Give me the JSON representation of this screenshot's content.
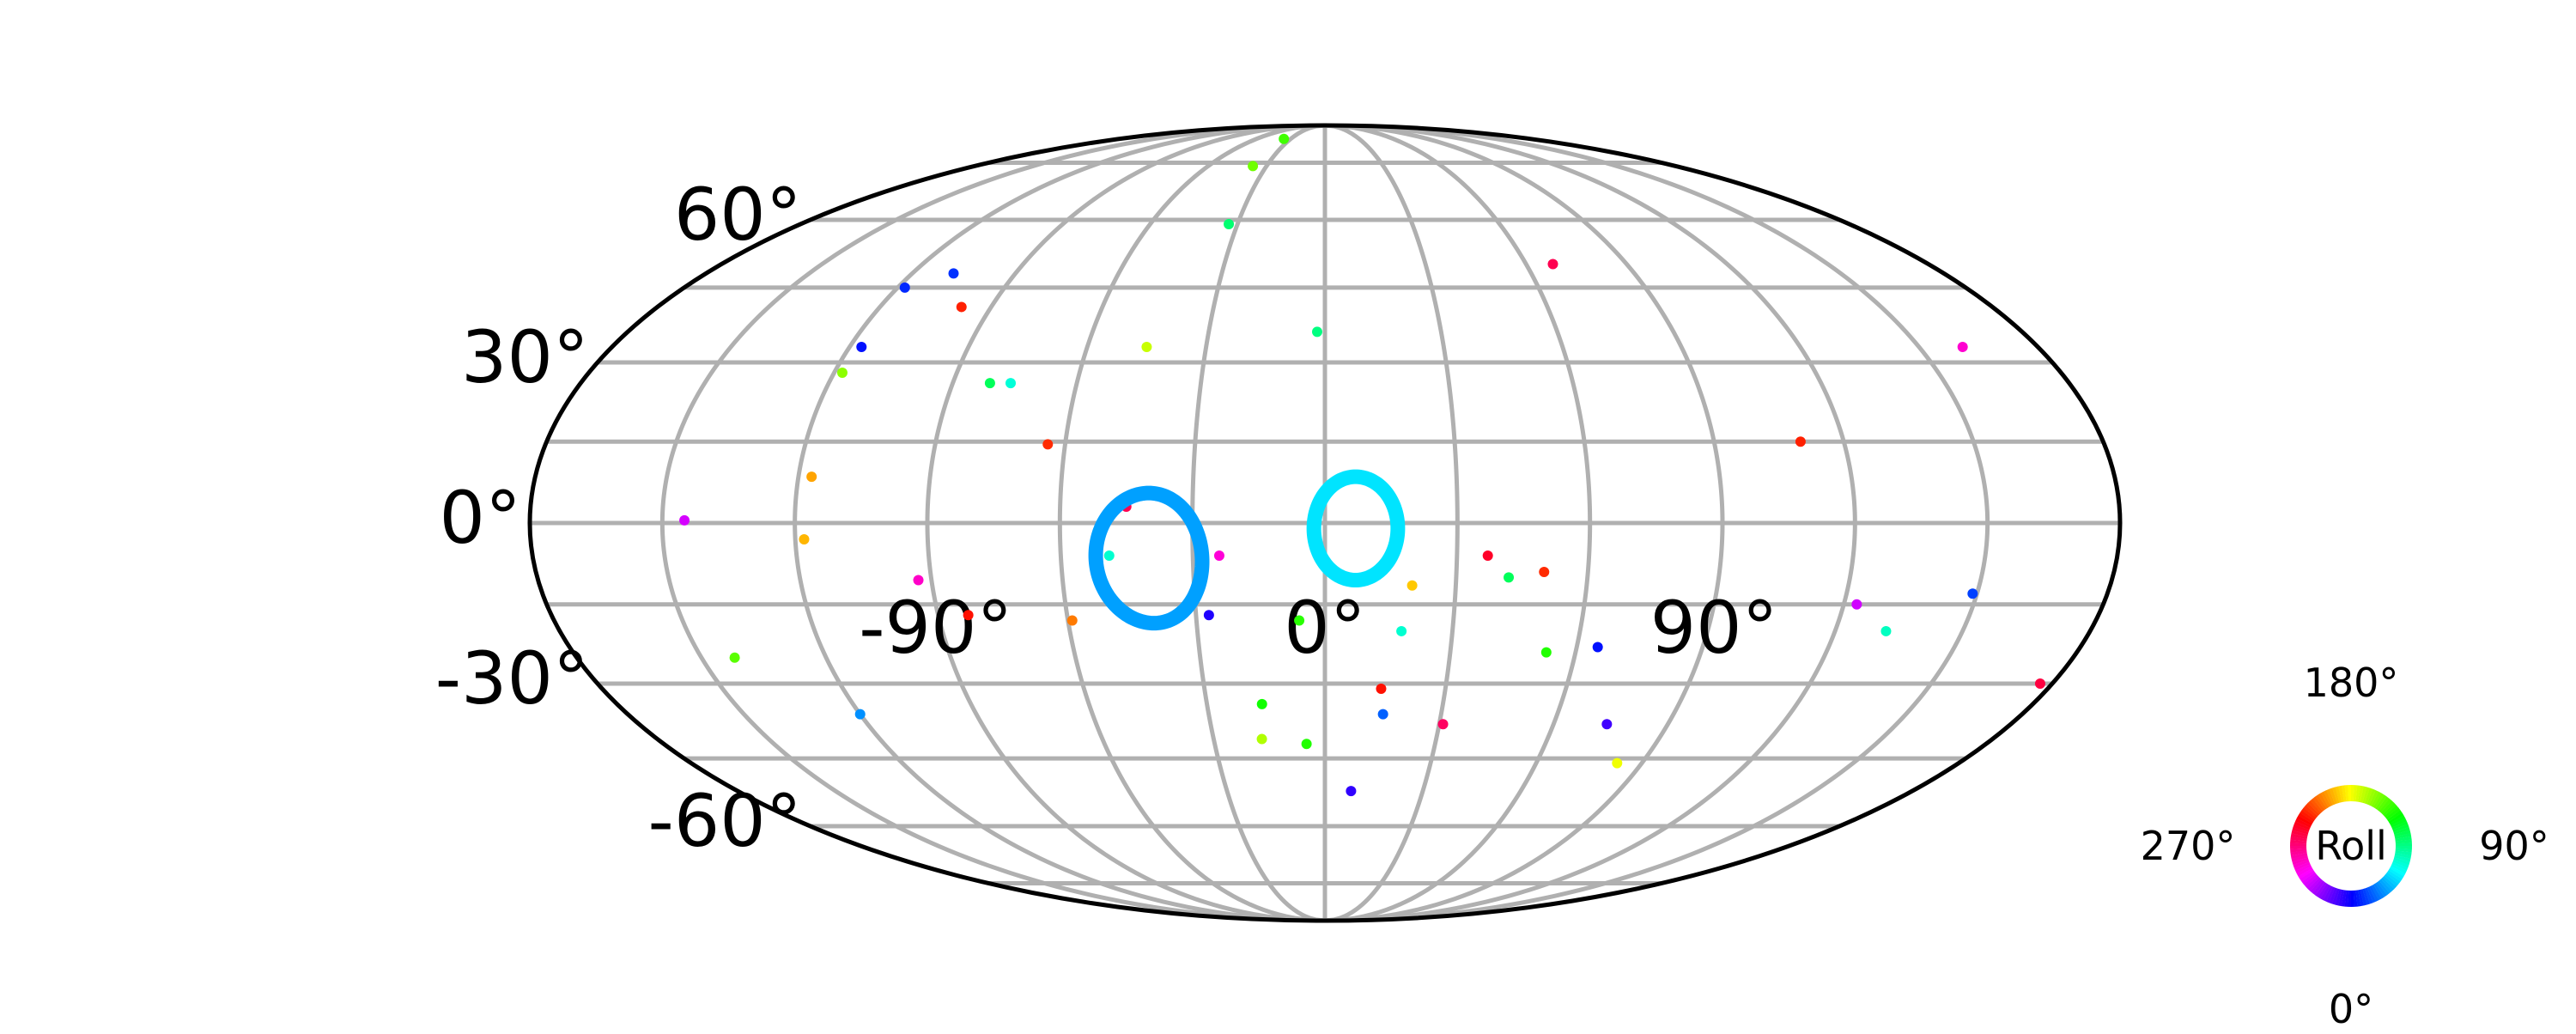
{
  "chart_data": {
    "type": "scatter",
    "projection": "mollweide",
    "grid": true,
    "xlabel": "",
    "ylabel": "",
    "xlim": [
      -180,
      180
    ],
    "ylim": [
      -90,
      90
    ],
    "lon_ticks": [
      -150,
      -120,
      -90,
      -60,
      -30,
      0,
      30,
      60,
      90,
      120,
      150
    ],
    "lat_ticks": [
      -75,
      -60,
      -45,
      -30,
      -15,
      0,
      15,
      30,
      45,
      60,
      75
    ],
    "lon_tick_labels": [
      {
        "lon": -90,
        "text": "-90°"
      },
      {
        "lon": 0,
        "text": "0°"
      },
      {
        "lon": 90,
        "text": "90°"
      }
    ],
    "lat_tick_labels": [
      {
        "lat": 60,
        "text": "60°"
      },
      {
        "lat": 30,
        "text": "30°"
      },
      {
        "lat": 0,
        "text": "0°"
      },
      {
        "lat": -30,
        "text": "-30°"
      },
      {
        "lat": -60,
        "text": "-60°"
      }
    ],
    "points": [
      {
        "lon": -145,
        "lat": 0.5,
        "color": "#d500ff"
      },
      {
        "lon": -117,
        "lat": 8.5,
        "color": "#ffa400"
      },
      {
        "lon": -118,
        "lat": -3,
        "color": "#ffb600"
      },
      {
        "lon": -118,
        "lat": 28,
        "color": "#8cff00"
      },
      {
        "lon": -117,
        "lat": 33,
        "color": "#0010ff"
      },
      {
        "lon": -118,
        "lat": 45,
        "color": "#0028ff"
      },
      {
        "lon": -108,
        "lat": 48,
        "color": "#0030ff"
      },
      {
        "lon": -98,
        "lat": 41,
        "color": "#ff2000"
      },
      {
        "lon": -81,
        "lat": 26,
        "color": "#00ff5a"
      },
      {
        "lon": -76,
        "lat": 26,
        "color": "#00ffd8"
      },
      {
        "lon": -64,
        "lat": 14.5,
        "color": "#ff2a00"
      },
      {
        "lon": -45,
        "lat": 33,
        "color": "#c8ff00"
      },
      {
        "lon": -45,
        "lat": 3,
        "color": "#ff0050"
      },
      {
        "lon": -49,
        "lat": -6,
        "color": "#00ffd0"
      },
      {
        "lon": -24,
        "lat": -6,
        "color": "#ff00d8"
      },
      {
        "lon": -27,
        "lat": -17,
        "color": "#2000ff"
      },
      {
        "lon": -59,
        "lat": -18,
        "color": "#ff7a00"
      },
      {
        "lon": -83,
        "lat": -17,
        "color": "#ff1000"
      },
      {
        "lon": -93,
        "lat": -10.5,
        "color": "#ff00c8"
      },
      {
        "lon": -142,
        "lat": -25,
        "color": "#5aff00"
      },
      {
        "lon": -120,
        "lat": -36,
        "color": "#0090ff"
      },
      {
        "lon": -6,
        "lat": -18,
        "color": "#28ff00"
      },
      {
        "lon": 18,
        "lat": -20,
        "color": "#00ffd0"
      },
      {
        "lon": 20,
        "lat": -11.5,
        "color": "#ffc800"
      },
      {
        "lon": 37,
        "lat": -6,
        "color": "#ff0028"
      },
      {
        "lon": 42,
        "lat": -10,
        "color": "#00ff5a"
      },
      {
        "lon": 50,
        "lat": -9,
        "color": "#ff2a00"
      },
      {
        "lon": 53,
        "lat": -24,
        "color": "#20ff00"
      },
      {
        "lon": 65,
        "lat": -23,
        "color": "#0010ff"
      },
      {
        "lon": 14,
        "lat": -31,
        "color": "#ff1000"
      },
      {
        "lon": 15,
        "lat": -36,
        "color": "#0060ff"
      },
      {
        "lon": 31,
        "lat": -38,
        "color": "#ff0060"
      },
      {
        "lon": -16,
        "lat": -34,
        "color": "#10ff00"
      },
      {
        "lon": -17,
        "lat": -41,
        "color": "#b0ff00"
      },
      {
        "lon": -5,
        "lat": -42,
        "color": "#20ff00"
      },
      {
        "lon": 8,
        "lat": -52,
        "color": "#3000ff"
      },
      {
        "lon": 83,
        "lat": -46,
        "color": "#f0ff00"
      },
      {
        "lon": 74,
        "lat": -38,
        "color": "#4000ff"
      },
      {
        "lon": 123,
        "lat": -15,
        "color": "#d000ff"
      },
      {
        "lon": 132,
        "lat": -20,
        "color": "#00ffc0"
      },
      {
        "lon": 149,
        "lat": -13,
        "color": "#0040ff"
      },
      {
        "lon": 177,
        "lat": -30,
        "color": "#ff0040"
      },
      {
        "lon": 110,
        "lat": 15,
        "color": "#ff2000"
      },
      {
        "lon": 161,
        "lat": 33,
        "color": "#ff00d0"
      },
      {
        "lon": 68,
        "lat": 50,
        "color": "#ff0050"
      },
      {
        "lon": -2,
        "lat": 36,
        "color": "#00ff80"
      },
      {
        "lon": -33,
        "lat": 59,
        "color": "#00ff70"
      },
      {
        "lon": -37,
        "lat": 74,
        "color": "#70ff00"
      },
      {
        "lon": -36,
        "lat": 83,
        "color": "#40ff00"
      }
    ],
    "rings": [
      {
        "lon": -40,
        "lat": -6.5,
        "radius_deg": 12,
        "color": "#00a0ff"
      },
      {
        "lon": 7,
        "lat": -1,
        "radius_deg": 9.5,
        "color": "#00e4ff"
      }
    ],
    "colorwheel": {
      "label": "Roll",
      "ticks": [
        {
          "angle": "top",
          "text": "180°"
        },
        {
          "angle": "right",
          "text": "90°"
        },
        {
          "angle": "bottom",
          "text": "0°"
        },
        {
          "angle": "left",
          "text": "270°"
        }
      ]
    }
  }
}
